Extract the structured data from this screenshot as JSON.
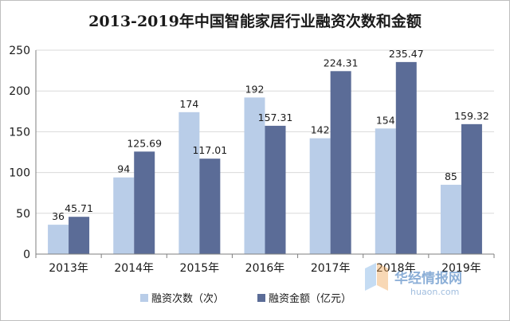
{
  "chart_data": {
    "type": "bar",
    "title": "2013-2019年中国智能家居行业融资次数和金额",
    "categories": [
      "2013年",
      "2014年",
      "2015年",
      "2016年",
      "2017年",
      "2018年",
      "2019年"
    ],
    "series": [
      {
        "name": "融资次数（次）",
        "color": "#b9cde8",
        "values": [
          36,
          94,
          174,
          192,
          142,
          154,
          85
        ]
      },
      {
        "name": "融资金额（亿元）",
        "color": "#5b6c97",
        "values": [
          45.71,
          125.69,
          117.01,
          157.31,
          224.31,
          235.47,
          159.32
        ]
      }
    ],
    "data_labels": [
      [
        "36",
        "94",
        "174",
        "192",
        "142",
        "154",
        "85"
      ],
      [
        "45.71",
        "125.69",
        "117.01",
        "157.31",
        "224.31",
        "235.47",
        "159.32"
      ]
    ],
    "y_ticks": [
      "0",
      "50",
      "100",
      "150",
      "200",
      "250"
    ],
    "ylim": [
      0,
      250
    ],
    "xlabel": "",
    "ylabel": "",
    "grid": true,
    "legend_position": "bottom"
  },
  "watermark": {
    "text": "华经情报网",
    "subtext": "huaon.com"
  }
}
